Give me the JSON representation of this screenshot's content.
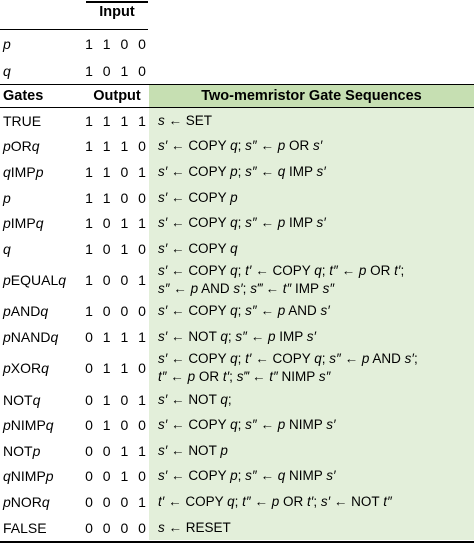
{
  "input_header": "Input",
  "inputs": [
    {
      "name": "p",
      "bits": "1 1 0 0"
    },
    {
      "name": "q",
      "bits": "1 0 1 0"
    }
  ],
  "headers": {
    "gates": "Gates",
    "output": "Output",
    "sequences": "Two-memristor Gate Sequences"
  },
  "rows": [
    {
      "gate": "TRUE",
      "output": "1 1 1 1",
      "seq": [
        "s ← SET"
      ]
    },
    {
      "gate": "p OR q",
      "output": "1 1 1 0",
      "seq": [
        "s′ ← COPY q;  s″ ← p OR s′"
      ]
    },
    {
      "gate": "q IMP p",
      "output": "1 1 0 1",
      "seq": [
        "s′ ← COPY p;  s″ ← q IMP s′"
      ]
    },
    {
      "gate": "p",
      "output": "1 1 0 0",
      "seq": [
        "s′ ← COPY p"
      ]
    },
    {
      "gate": "p IMP q",
      "output": "1 0 1 1",
      "seq": [
        "s′ ← COPY q;  s″ ← p IMP s′"
      ]
    },
    {
      "gate": "q",
      "output": "1 0 1 0",
      "seq": [
        "s′ ← COPY q"
      ]
    },
    {
      "gate": "p EQUAL q",
      "output": "1 0 0 1",
      "seq": [
        "s′ ← COPY q;  t′ ← COPY q; t″ ← p OR t′;",
        "s″ ← p AND s′;  s‴ ← t″ IMP s″"
      ]
    },
    {
      "gate": "p AND q",
      "output": "1 0 0 0",
      "seq": [
        "s′ ← COPY q;  s″ ← p AND s′"
      ]
    },
    {
      "gate": "p NAND q",
      "output": "0 1 1 1",
      "seq": [
        "s′ ← NOT q;  s″ ← p IMP s′"
      ]
    },
    {
      "gate": "p XOR q",
      "output": "0 1 1 0",
      "seq": [
        "s′ ← COPY q;  t′ ← COPY q; s″ ← p AND s′;",
        "t″ ← p OR t′; s‴ ← t″ NIMP s″"
      ]
    },
    {
      "gate": "NOT q",
      "output": "0 1 0 1",
      "seq": [
        "s′ ← NOT q;"
      ]
    },
    {
      "gate": "p NIMP q",
      "output": "0 1 0 0",
      "seq": [
        "s′ ← COPY q;  s″ ← p NIMP s′"
      ]
    },
    {
      "gate": "NOT p",
      "output": "0 0 1 1",
      "seq": [
        "s′ ← NOT p"
      ]
    },
    {
      "gate": "q NIMP p",
      "output": "0 0 1 0",
      "seq": [
        "s′ ← COPY p;  s″ ← q NIMP s′"
      ]
    },
    {
      "gate": "p NOR q",
      "output": "0 0 0 1",
      "seq": [
        "t′ ← COPY q;  t″ ← p OR t′; s′ ← NOT t″"
      ]
    },
    {
      "gate": "FALSE",
      "output": "0 0 0 0",
      "seq": [
        "s ← RESET"
      ]
    }
  ]
}
